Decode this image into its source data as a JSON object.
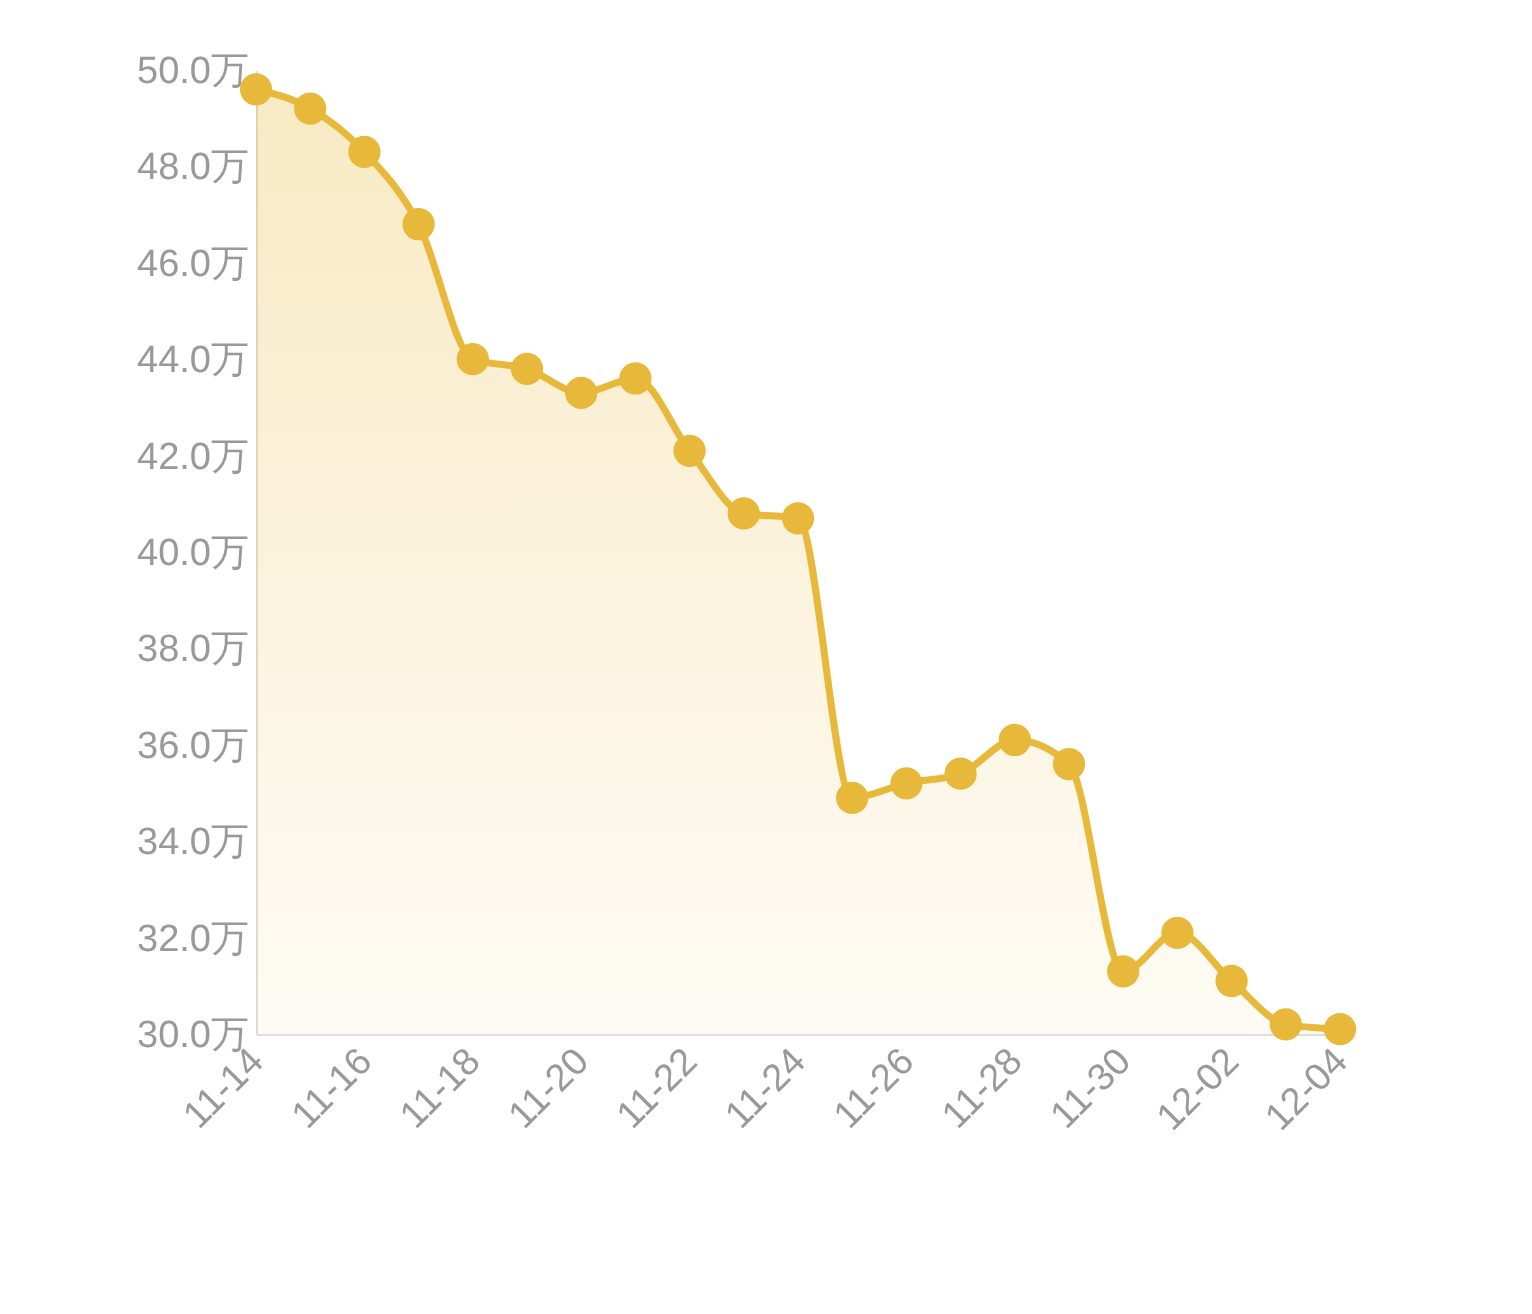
{
  "chart_data": {
    "type": "area",
    "categories": [
      "11-14",
      null,
      "11-16",
      null,
      "11-18",
      null,
      "11-20",
      null,
      "11-22",
      null,
      "11-24",
      null,
      "11-26",
      null,
      "11-28",
      null,
      "11-30",
      null,
      "12-02",
      null,
      "12-04"
    ],
    "series": [
      {
        "color": "#e8b83a",
        "values": [
          49.6,
          49.2,
          48.3,
          46.8,
          44.0,
          43.8,
          43.3,
          43.6,
          42.1,
          40.8,
          40.7,
          34.9,
          35.2,
          35.4,
          36.1,
          35.6,
          31.3,
          32.1,
          31.1,
          30.2,
          30.1
        ]
      }
    ],
    "ylim": [
      30,
      50
    ],
    "yticks": [
      {
        "value": 30,
        "label": "30.0万"
      },
      {
        "value": 32,
        "label": "32.0万"
      },
      {
        "value": 34,
        "label": "34.0万"
      },
      {
        "value": 36,
        "label": "36.0万"
      },
      {
        "value": 38,
        "label": "38.0万"
      },
      {
        "value": 40,
        "label": "40.0万"
      },
      {
        "value": 42,
        "label": "42.0万"
      },
      {
        "value": 44,
        "label": "44.0万"
      },
      {
        "value": 46,
        "label": "46.0万"
      },
      {
        "value": 48,
        "label": "48.0万"
      },
      {
        "value": 50,
        "label": "50.0万"
      }
    ],
    "grid": false,
    "marker": "circle"
  }
}
